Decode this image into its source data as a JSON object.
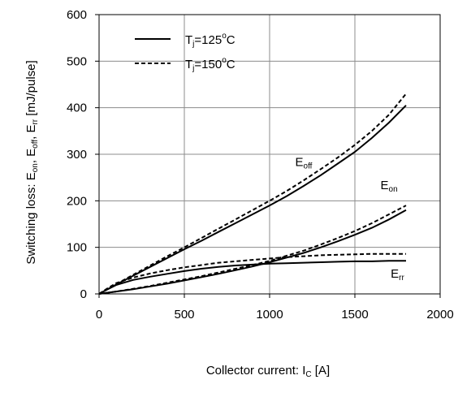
{
  "chart_data": {
    "type": "line",
    "xlabel_main": "Collector current: I",
    "xlabel_sub": "C",
    "xlabel_unit": " [A]",
    "ylabel_parts": [
      {
        "t": "Switching loss: E",
        "sub": false
      },
      {
        "t": "on",
        "sub": true
      },
      {
        "t": ", E",
        "sub": false
      },
      {
        "t": "off",
        "sub": true
      },
      {
        "t": ", E",
        "sub": false
      },
      {
        "t": "rr",
        "sub": true
      },
      {
        "t": " [mJ/pulse]",
        "sub": false
      }
    ],
    "xlim": [
      0,
      2000
    ],
    "ylim": [
      0,
      600
    ],
    "xticks": [
      0,
      500,
      1000,
      1500,
      2000
    ],
    "yticks": [
      0,
      100,
      200,
      300,
      400,
      500,
      600
    ],
    "grid": true,
    "legend_position": "top-left",
    "legend": [
      {
        "label_main": "T",
        "label_sub": "j",
        "label_rest": "=125",
        "label_deg": "o",
        "label_unit": "C",
        "style": "solid"
      },
      {
        "label_main": "T",
        "label_sub": "j",
        "label_rest": "=150",
        "label_deg": "o",
        "label_unit": "C",
        "style": "dashed"
      }
    ],
    "annotations": [
      {
        "main": "E",
        "sub": "off",
        "x": 1150,
        "y": 275
      },
      {
        "main": "E",
        "sub": "on",
        "x": 1650,
        "y": 225
      },
      {
        "main": "E",
        "sub": "rr",
        "x": 1710,
        "y": 35
      }
    ],
    "series": [
      {
        "curve": "Eoff",
        "tj": "125",
        "style": "solid",
        "x": [
          0,
          100,
          200,
          300,
          400,
          500,
          600,
          700,
          800,
          900,
          1000,
          1100,
          1200,
          1300,
          1400,
          1500,
          1600,
          1700,
          1800
        ],
        "y": [
          0,
          20,
          39,
          58,
          77,
          96,
          114,
          133,
          152,
          171,
          190,
          210,
          232,
          255,
          280,
          305,
          335,
          368,
          405
        ]
      },
      {
        "curve": "Eoff",
        "tj": "150",
        "style": "dashed",
        "x": [
          0,
          100,
          200,
          300,
          400,
          500,
          600,
          700,
          800,
          900,
          1000,
          1100,
          1200,
          1300,
          1400,
          1500,
          1600,
          1700,
          1800
        ],
        "y": [
          0,
          21,
          41,
          61,
          81,
          100,
          120,
          140,
          160,
          180,
          200,
          221,
          244,
          268,
          293,
          320,
          350,
          385,
          430
        ]
      },
      {
        "curve": "Eon",
        "tj": "125",
        "style": "solid",
        "x": [
          0,
          100,
          200,
          300,
          400,
          500,
          600,
          700,
          800,
          900,
          1000,
          1100,
          1200,
          1300,
          1400,
          1500,
          1600,
          1700,
          1800
        ],
        "y": [
          0,
          5,
          10,
          16,
          22,
          29,
          36,
          43,
          51,
          59,
          68,
          78,
          88,
          100,
          113,
          127,
          142,
          160,
          180
        ]
      },
      {
        "curve": "Eon",
        "tj": "150",
        "style": "dashed",
        "x": [
          0,
          100,
          200,
          300,
          400,
          500,
          600,
          700,
          800,
          900,
          1000,
          1100,
          1200,
          1300,
          1400,
          1500,
          1600,
          1700,
          1800
        ],
        "y": [
          0,
          5,
          11,
          17,
          24,
          31,
          38,
          46,
          54,
          62,
          71,
          82,
          93,
          106,
          120,
          135,
          152,
          171,
          190
        ]
      },
      {
        "curve": "Err",
        "tj": "125",
        "style": "solid",
        "x": [
          0,
          50,
          100,
          200,
          300,
          400,
          500,
          600,
          700,
          800,
          900,
          1000,
          1100,
          1200,
          1300,
          1400,
          1500,
          1600,
          1700,
          1800
        ],
        "y": [
          0,
          10,
          19,
          30,
          37,
          43,
          49,
          54,
          58,
          61,
          63,
          65,
          66,
          67,
          68,
          69,
          70,
          70,
          71,
          71
        ]
      },
      {
        "curve": "Err",
        "tj": "150",
        "style": "dashed",
        "x": [
          0,
          50,
          100,
          200,
          300,
          400,
          500,
          600,
          700,
          800,
          900,
          1000,
          1100,
          1200,
          1300,
          1400,
          1500,
          1600,
          1700,
          1800
        ],
        "y": [
          0,
          12,
          23,
          35,
          44,
          51,
          57,
          62,
          67,
          70,
          73,
          76,
          79,
          81,
          83,
          84,
          85,
          86,
          86,
          86
        ]
      }
    ]
  }
}
